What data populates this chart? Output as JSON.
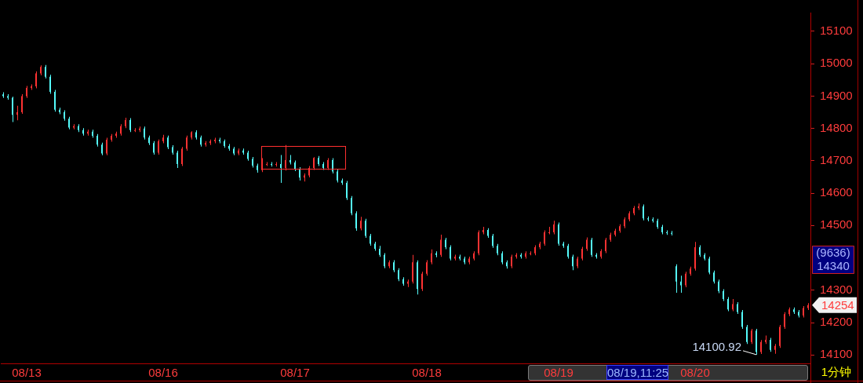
{
  "chart_data": {
    "type": "candlestick",
    "categories": [
      null,
      null,
      null,
      null,
      null,
      "08/13",
      null,
      null,
      null,
      null,
      null,
      null,
      null,
      null,
      null,
      null,
      null,
      null,
      null,
      null,
      null,
      null,
      null,
      null,
      null,
      null,
      null,
      null,
      null,
      null,
      null,
      null,
      null,
      null,
      "08/16",
      null,
      null,
      null,
      null,
      null,
      null,
      null,
      null,
      null,
      null,
      null,
      null,
      null,
      null,
      null,
      null,
      null,
      null,
      null,
      null,
      null,
      null,
      null,
      null,
      null,
      null,
      null,
      "08/17",
      null,
      null,
      null,
      null,
      null,
      null,
      null,
      null,
      null,
      null,
      null,
      null,
      null,
      null,
      null,
      null,
      null,
      null,
      null,
      null,
      null,
      null,
      null,
      null,
      null,
      null,
      null,
      "08/18",
      null,
      null,
      null,
      null,
      null,
      null,
      null,
      null,
      null,
      null,
      null,
      null,
      null,
      null,
      null,
      null,
      null,
      null,
      null,
      null,
      null,
      null,
      null,
      null,
      null,
      null,
      null,
      "08/19",
      null,
      null,
      null,
      null,
      null,
      null,
      null,
      null,
      null,
      null,
      null,
      null,
      null,
      null,
      null,
      null,
      null,
      null,
      null,
      null,
      null,
      null,
      null,
      null,
      null,
      null,
      null,
      null,
      "08/20",
      null,
      null,
      null,
      null,
      null,
      null,
      null,
      null,
      null,
      null,
      null,
      null,
      null,
      null,
      null,
      null,
      null,
      null,
      null,
      null,
      null,
      null,
      null,
      null
    ],
    "ohlc": [
      [
        14905,
        14912,
        14894,
        14900
      ],
      [
        14900,
        14906,
        14889,
        14895
      ],
      [
        14895,
        14898,
        14820,
        14842
      ],
      [
        14842,
        14870,
        14825,
        14850
      ],
      [
        14850,
        14906,
        14845,
        14900
      ],
      [
        14900,
        14931,
        14894,
        14925
      ],
      [
        14925,
        14936,
        14919,
        14930
      ],
      [
        14930,
        14976,
        14924,
        14970
      ],
      [
        14970,
        14995,
        14964,
        14990
      ],
      [
        14990,
        14996,
        14954,
        14960
      ],
      [
        14960,
        14966,
        14907,
        14913
      ],
      [
        14913,
        14919,
        14852,
        14858
      ],
      [
        14858,
        14864,
        14844,
        14850
      ],
      [
        14850,
        14856,
        14824,
        14830
      ],
      [
        14830,
        14836,
        14797,
        14803
      ],
      [
        14803,
        14813,
        14797,
        14807
      ],
      [
        14807,
        14813,
        14789,
        14795
      ],
      [
        14795,
        14801,
        14778,
        14784
      ],
      [
        14784,
        14796,
        14778,
        14790
      ],
      [
        14790,
        14796,
        14771,
        14777
      ],
      [
        14777,
        14783,
        14744,
        14750
      ],
      [
        14750,
        14756,
        14717,
        14723
      ],
      [
        14723,
        14771,
        14717,
        14765
      ],
      [
        14765,
        14783,
        14759,
        14777
      ],
      [
        14777,
        14790,
        14771,
        14784
      ],
      [
        14784,
        14813,
        14778,
        14807
      ],
      [
        14807,
        14833,
        14801,
        14826
      ],
      [
        14826,
        14832,
        14789,
        14795
      ],
      [
        14795,
        14801,
        14789,
        14795
      ],
      [
        14795,
        14806,
        14789,
        14800
      ],
      [
        14800,
        14806,
        14766,
        14772
      ],
      [
        14772,
        14778,
        14749,
        14755
      ],
      [
        14755,
        14761,
        14719,
        14725
      ],
      [
        14725,
        14766,
        14719,
        14760
      ],
      [
        14760,
        14780,
        14754,
        14772
      ],
      [
        14772,
        14778,
        14736,
        14742
      ],
      [
        14742,
        14748,
        14719,
        14725
      ],
      [
        14725,
        14731,
        14678,
        14690
      ],
      [
        14690,
        14743,
        14684,
        14737
      ],
      [
        14737,
        14778,
        14731,
        14772
      ],
      [
        14772,
        14791,
        14766,
        14788
      ],
      [
        14788,
        14794,
        14766,
        14772
      ],
      [
        14772,
        14778,
        14744,
        14750
      ],
      [
        14750,
        14761,
        14744,
        14755
      ],
      [
        14755,
        14766,
        14749,
        14760
      ],
      [
        14760,
        14771,
        14754,
        14765
      ],
      [
        14765,
        14771,
        14754,
        14760
      ],
      [
        14760,
        14766,
        14740,
        14746
      ],
      [
        14746,
        14752,
        14731,
        14737
      ],
      [
        14737,
        14743,
        14717,
        14723
      ],
      [
        14723,
        14738,
        14717,
        14732
      ],
      [
        14732,
        14738,
        14719,
        14725
      ],
      [
        14725,
        14731,
        14700,
        14706
      ],
      [
        14706,
        14712,
        14679,
        14685
      ],
      [
        14685,
        14691,
        14663,
        14671
      ],
      [
        14671,
        14708,
        14665,
        14690
      ],
      [
        14690,
        14696,
        14684,
        14690
      ],
      [
        14690,
        14696,
        14682,
        14688
      ],
      [
        14688,
        14696,
        14682,
        14690
      ],
      [
        14690,
        14718,
        14632,
        14678
      ],
      [
        14678,
        14749,
        14670,
        14702
      ],
      [
        14702,
        14718,
        14689,
        14695
      ],
      [
        14695,
        14701,
        14668,
        14674
      ],
      [
        14674,
        14680,
        14639,
        14648
      ],
      [
        14648,
        14661,
        14636,
        14655
      ],
      [
        14655,
        14684,
        14649,
        14678
      ],
      [
        14678,
        14711,
        14672,
        14709
      ],
      [
        14709,
        14715,
        14684,
        14690
      ],
      [
        14690,
        14696,
        14672,
        14678
      ],
      [
        14678,
        14708,
        14672,
        14702
      ],
      [
        14702,
        14708,
        14661,
        14667
      ],
      [
        14667,
        14673,
        14633,
        14639
      ],
      [
        14639,
        14645,
        14626,
        14632
      ],
      [
        14632,
        14638,
        14579,
        14585
      ],
      [
        14585,
        14591,
        14532,
        14538
      ],
      [
        14538,
        14544,
        14484,
        14491
      ],
      [
        14491,
        14527,
        14485,
        14515
      ],
      [
        14515,
        14521,
        14462,
        14468
      ],
      [
        14468,
        14474,
        14438,
        14444
      ],
      [
        14444,
        14450,
        14422,
        14428
      ],
      [
        14428,
        14437,
        14403,
        14409
      ],
      [
        14409,
        14415,
        14368,
        14374
      ],
      [
        14374,
        14392,
        14368,
        14386
      ],
      [
        14386,
        14393,
        14356,
        14362
      ],
      [
        14362,
        14368,
        14328,
        14334
      ],
      [
        14334,
        14340,
        14314,
        14320
      ],
      [
        14320,
        14333,
        14310,
        14327
      ],
      [
        14327,
        14409,
        14321,
        14386
      ],
      [
        14386,
        14392,
        14287,
        14304
      ],
      [
        14304,
        14357,
        14298,
        14351
      ],
      [
        14351,
        14393,
        14345,
        14386
      ],
      [
        14386,
        14426,
        14380,
        14414
      ],
      [
        14414,
        14420,
        14402,
        14409
      ],
      [
        14409,
        14472,
        14403,
        14456
      ],
      [
        14456,
        14462,
        14427,
        14433
      ],
      [
        14433,
        14439,
        14392,
        14398
      ],
      [
        14398,
        14410,
        14392,
        14404
      ],
      [
        14404,
        14410,
        14392,
        14398
      ],
      [
        14398,
        14404,
        14380,
        14386
      ],
      [
        14386,
        14404,
        14380,
        14398
      ],
      [
        14398,
        14420,
        14392,
        14414
      ],
      [
        14414,
        14485,
        14408,
        14479
      ],
      [
        14479,
        14496,
        14473,
        14486
      ],
      [
        14486,
        14492,
        14462,
        14468
      ],
      [
        14468,
        14474,
        14431,
        14437
      ],
      [
        14437,
        14443,
        14408,
        14414
      ],
      [
        14414,
        14420,
        14380,
        14386
      ],
      [
        14386,
        14392,
        14367,
        14374
      ],
      [
        14374,
        14410,
        14368,
        14404
      ],
      [
        14404,
        14415,
        14398,
        14409
      ],
      [
        14409,
        14415,
        14398,
        14404
      ],
      [
        14404,
        14420,
        14398,
        14414
      ],
      [
        14414,
        14420,
        14408,
        14414
      ],
      [
        14414,
        14439,
        14408,
        14433
      ],
      [
        14433,
        14450,
        14427,
        14444
      ],
      [
        14444,
        14485,
        14438,
        14479
      ],
      [
        14479,
        14496,
        14473,
        14479
      ],
      [
        14479,
        14515,
        14473,
        14503
      ],
      [
        14503,
        14509,
        14438,
        14444
      ],
      [
        14444,
        14450,
        14431,
        14437
      ],
      [
        14437,
        14443,
        14398,
        14404
      ],
      [
        14404,
        14410,
        14362,
        14374
      ],
      [
        14374,
        14404,
        14368,
        14398
      ],
      [
        14398,
        14434,
        14392,
        14428
      ],
      [
        14428,
        14463,
        14422,
        14456
      ],
      [
        14456,
        14462,
        14403,
        14409
      ],
      [
        14409,
        14415,
        14398,
        14404
      ],
      [
        14404,
        14427,
        14398,
        14421
      ],
      [
        14421,
        14462,
        14415,
        14456
      ],
      [
        14456,
        14478,
        14450,
        14472
      ],
      [
        14472,
        14490,
        14466,
        14484
      ],
      [
        14484,
        14504,
        14478,
        14498
      ],
      [
        14498,
        14525,
        14492,
        14519
      ],
      [
        14519,
        14544,
        14513,
        14538
      ],
      [
        14538,
        14560,
        14532,
        14554
      ],
      [
        14554,
        14568,
        14548,
        14559
      ],
      [
        14559,
        14565,
        14516,
        14522
      ],
      [
        14522,
        14528,
        14513,
        14519
      ],
      [
        14519,
        14525,
        14509,
        14515
      ],
      [
        14515,
        14521,
        14490,
        14496
      ],
      [
        14496,
        14502,
        14473,
        14479
      ],
      [
        14479,
        14485,
        14471,
        14477
      ],
      [
        14477,
        14483,
        14469,
        14475
      ],
      [
        14374,
        14380,
        14292,
        14327
      ],
      [
        14327,
        14345,
        14292,
        14315
      ],
      [
        14315,
        14357,
        14309,
        14351
      ],
      [
        14351,
        14373,
        14345,
        14367
      ],
      [
        14367,
        14449,
        14361,
        14433
      ],
      [
        14433,
        14439,
        14403,
        14409
      ],
      [
        14409,
        14415,
        14392,
        14398
      ],
      [
        14398,
        14404,
        14349,
        14355
      ],
      [
        14355,
        14361,
        14321,
        14327
      ],
      [
        14327,
        14333,
        14291,
        14297
      ],
      [
        14297,
        14303,
        14267,
        14273
      ],
      [
        14273,
        14279,
        14235,
        14241
      ],
      [
        14241,
        14273,
        14235,
        14257
      ],
      [
        14257,
        14263,
        14227,
        14233
      ],
      [
        14233,
        14239,
        14181,
        14187
      ],
      [
        14187,
        14193,
        14134,
        14140
      ],
      [
        14140,
        14181,
        14134,
        14175
      ],
      [
        14175,
        14181,
        14100.92,
        14109
      ],
      [
        14109,
        14146,
        14103,
        14140
      ],
      [
        14140,
        14160,
        14134,
        14147
      ],
      [
        14147,
        14153,
        14110,
        14116
      ],
      [
        14116,
        14134,
        14104,
        14128
      ],
      [
        14128,
        14193,
        14122,
        14187
      ],
      [
        14187,
        14232,
        14181,
        14226
      ],
      [
        14226,
        14247,
        14220,
        14241
      ],
      [
        14241,
        14247,
        14227,
        14233
      ],
      [
        14233,
        14239,
        14216,
        14222
      ],
      [
        14222,
        14251,
        14216,
        14245
      ],
      [
        14245,
        14260,
        14239,
        14254
      ]
    ],
    "colors": [
      "#54fcfc",
      "#54fcfc",
      "#54fcfc",
      "#ff3232",
      "#ff3232",
      "#ff3232",
      "#ff3232",
      "#ff3232",
      "#ff3232",
      "#54fcfc",
      "#54fcfc",
      "#54fcfc",
      "#54fcfc",
      "#54fcfc",
      "#54fcfc",
      "#ff3232",
      "#54fcfc",
      "#54fcfc",
      "#ff3232",
      "#54fcfc",
      "#54fcfc",
      "#54fcfc",
      "#ff3232",
      "#ff3232",
      "#ff3232",
      "#ff3232",
      "#ff3232",
      "#54fcfc",
      "#ff3232",
      "#ff3232",
      "#54fcfc",
      "#54fcfc",
      "#54fcfc",
      "#ff3232",
      "#ff3232",
      "#54fcfc",
      "#54fcfc",
      "#54fcfc",
      "#ff3232",
      "#ff3232",
      "#ff3232",
      "#54fcfc",
      "#54fcfc",
      "#ff3232",
      "#ff3232",
      "#ff3232",
      "#54fcfc",
      "#54fcfc",
      "#54fcfc",
      "#54fcfc",
      "#ff3232",
      "#54fcfc",
      "#54fcfc",
      "#54fcfc",
      "#54fcfc",
      "#ff3232",
      "#ff3232",
      "#54fcfc",
      "#ff3232",
      "#54fcfc",
      "#ff3232",
      "#54fcfc",
      "#54fcfc",
      "#54fcfc",
      "#ff3232",
      "#ff3232",
      "#ff3232",
      "#54fcfc",
      "#54fcfc",
      "#ff3232",
      "#54fcfc",
      "#54fcfc",
      "#54fcfc",
      "#54fcfc",
      "#54fcfc",
      "#54fcfc",
      "#ff3232",
      "#54fcfc",
      "#54fcfc",
      "#54fcfc",
      "#54fcfc",
      "#54fcfc",
      "#ff3232",
      "#54fcfc",
      "#54fcfc",
      "#54fcfc",
      "#ff3232",
      "#ff3232",
      "#54fcfc",
      "#ff3232",
      "#ff3232",
      "#ff3232",
      "#54fcfc",
      "#ff3232",
      "#54fcfc",
      "#54fcfc",
      "#ff3232",
      "#54fcfc",
      "#54fcfc",
      "#ff3232",
      "#ff3232",
      "#ff3232",
      "#ff3232",
      "#54fcfc",
      "#54fcfc",
      "#54fcfc",
      "#54fcfc",
      "#54fcfc",
      "#ff3232",
      "#ff3232",
      "#54fcfc",
      "#ff3232",
      "#ff3232",
      "#ff3232",
      "#ff3232",
      "#ff3232",
      "#ff3232",
      "#ff3232",
      "#54fcfc",
      "#54fcfc",
      "#54fcfc",
      "#54fcfc",
      "#ff3232",
      "#ff3232",
      "#ff3232",
      "#54fcfc",
      "#54fcfc",
      "#ff3232",
      "#ff3232",
      "#ff3232",
      "#ff3232",
      "#ff3232",
      "#ff3232",
      "#ff3232",
      "#ff3232",
      "#ff3232",
      "#54fcfc",
      "#54fcfc",
      "#54fcfc",
      "#54fcfc",
      "#54fcfc",
      "#54fcfc",
      "#54fcfc",
      "#54fcfc",
      "#54fcfc",
      "#ff3232",
      "#ff3232",
      "#ff3232",
      "#54fcfc",
      "#54fcfc",
      "#54fcfc",
      "#54fcfc",
      "#54fcfc",
      "#54fcfc",
      "#54fcfc",
      "#ff3232",
      "#54fcfc",
      "#54fcfc",
      "#54fcfc",
      "#ff3232",
      "#54fcfc",
      "#ff3232",
      "#ff3232",
      "#54fcfc",
      "#ff3232",
      "#ff3232",
      "#ff3232",
      "#ff3232",
      "#54fcfc",
      "#54fcfc",
      "#ff3232",
      "#ff3232"
    ],
    "ylim": [
      14074,
      15158
    ],
    "yticks": [
      14100,
      14200,
      14300,
      14500,
      14600,
      14700,
      14800,
      14900,
      15000,
      15100
    ],
    "annotations": [
      "(9636)",
      "14340",
      "14254",
      "14100.92",
      "08/19,11:25",
      "1分钟"
    ]
  }
}
